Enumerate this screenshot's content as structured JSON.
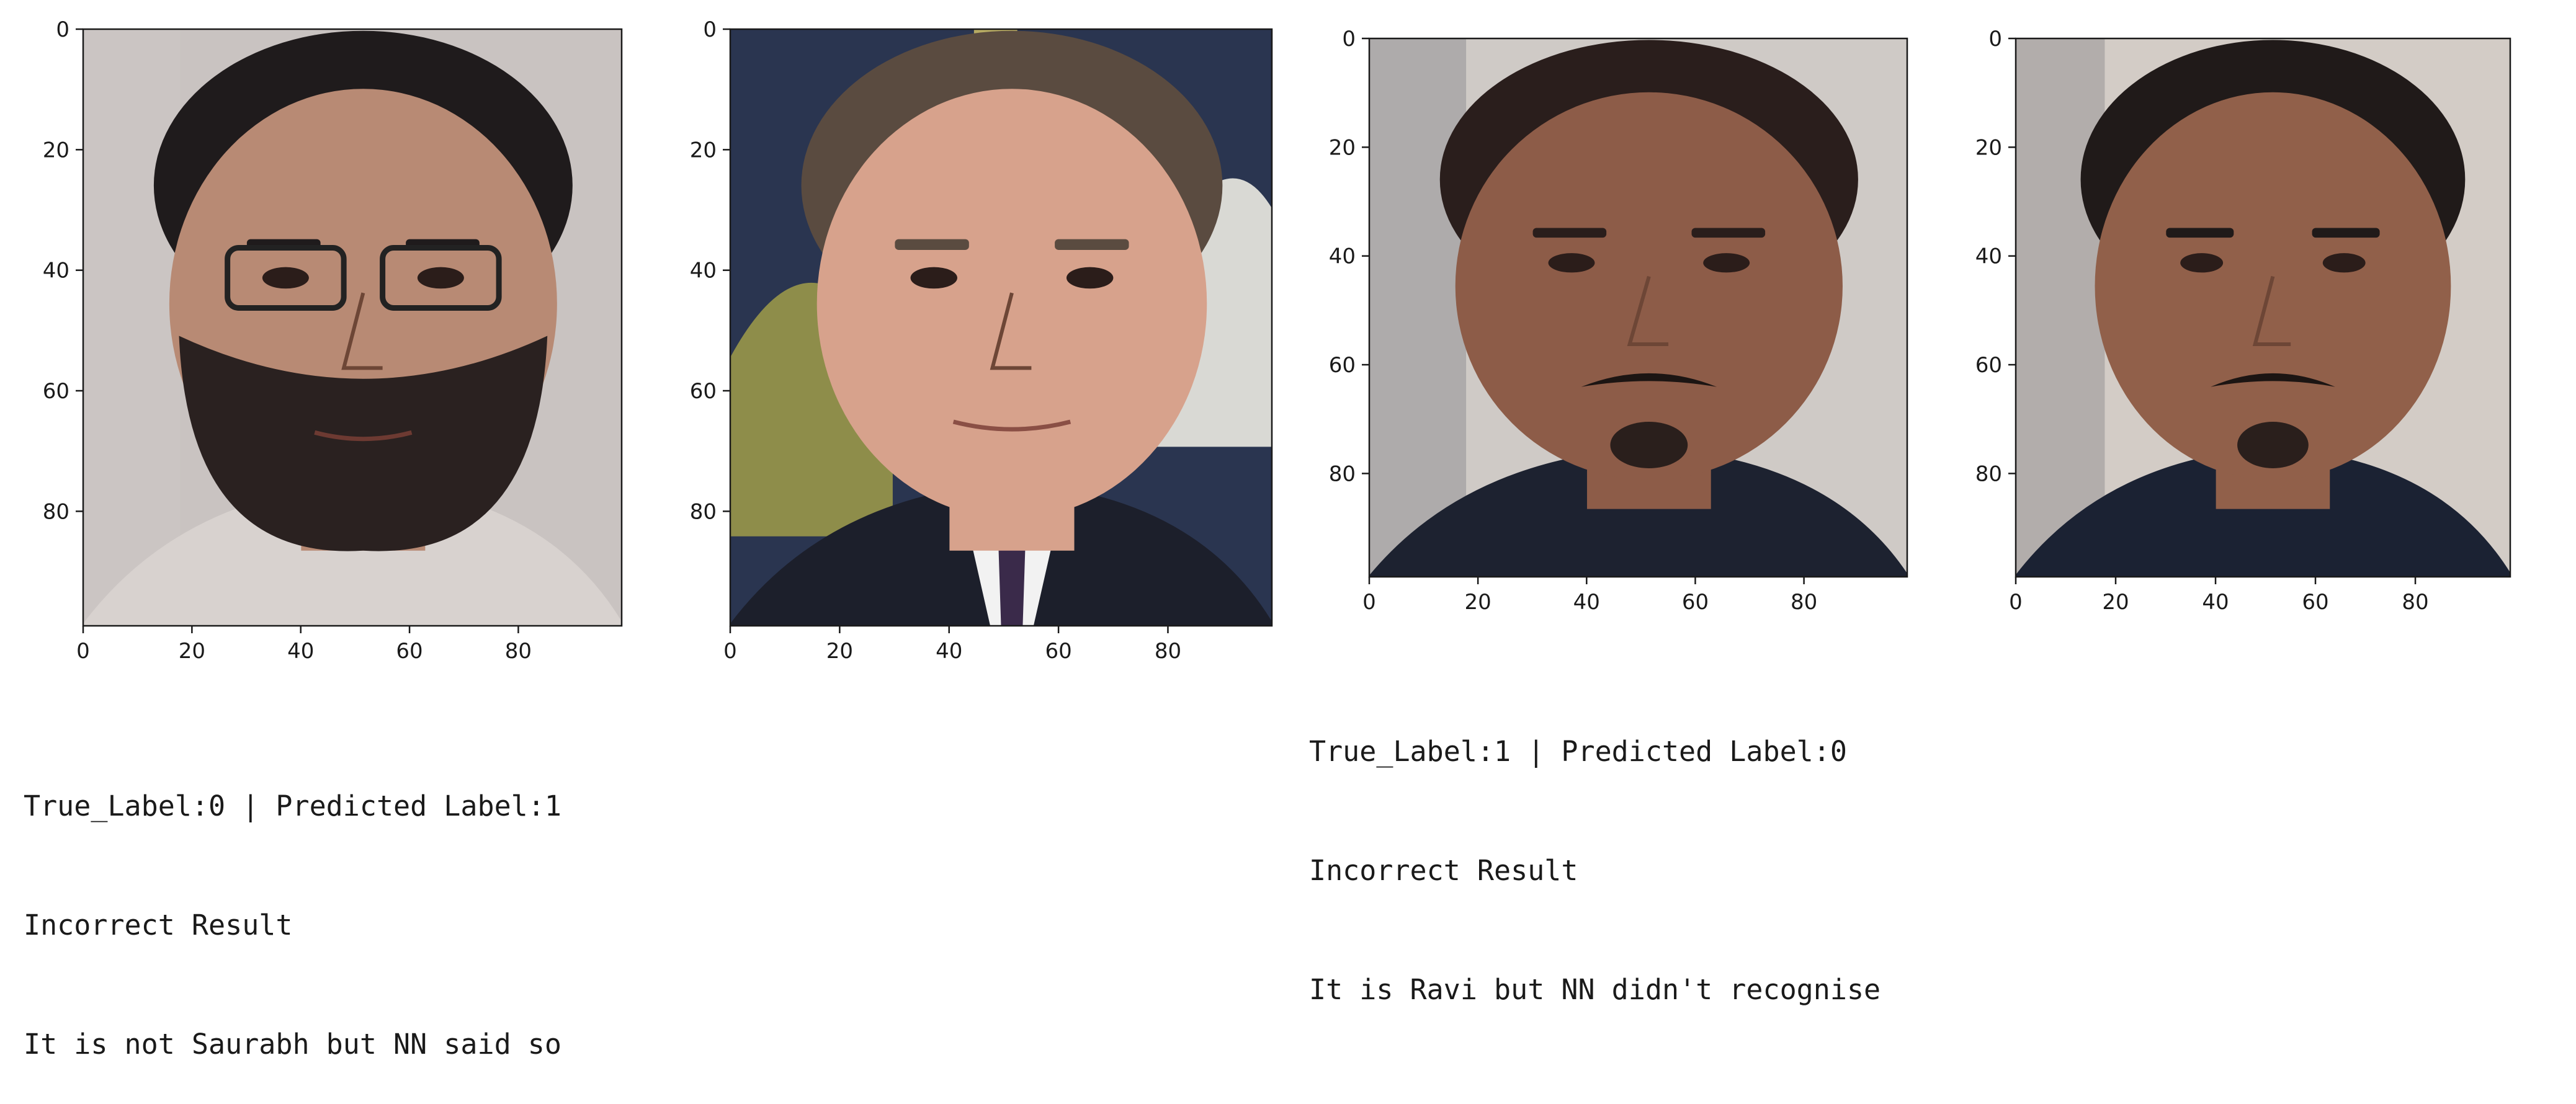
{
  "chart_data": [
    {
      "type": "image",
      "subject": "face-with-glasses-and-beard",
      "palette": {
        "background": "#c9c3c1",
        "skin": "#b88a74",
        "hair": "#1f1b1c",
        "clothing": "#d8d2cf"
      },
      "xticks": [
        0,
        20,
        40,
        60,
        80
      ],
      "yticks": [
        0,
        20,
        40,
        60,
        80
      ],
      "xlim": [
        0,
        99
      ],
      "ylim": [
        99,
        0
      ]
    },
    {
      "type": "image",
      "subject": "man-in-suit-portrait",
      "palette": {
        "background": "#2a3550",
        "skin": "#d7a28c",
        "hair": "#5a4b40",
        "clothing": "#1c1f2b"
      },
      "xticks": [
        0,
        20,
        40,
        60,
        80
      ],
      "yticks": [
        0,
        20,
        40,
        60,
        80
      ],
      "xlim": [
        0,
        99
      ],
      "ylim": [
        99,
        0
      ]
    },
    {
      "type": "image",
      "subject": "face-with-earbud",
      "palette": {
        "background": "#cfcac6",
        "skin": "#8d5c48",
        "hair": "#2a1e1c",
        "clothing": "#1d2230"
      },
      "xticks": [
        0,
        20,
        40,
        60,
        80
      ],
      "yticks": [
        0,
        20,
        40,
        60,
        80
      ],
      "xlim": [
        0,
        99
      ],
      "ylim": [
        99,
        0
      ]
    },
    {
      "type": "image",
      "subject": "face-frontal",
      "palette": {
        "background": "#d3ccc6",
        "skin": "#91604a",
        "hair": "#201a19",
        "clothing": "#1b2233"
      },
      "xticks": [
        0,
        20,
        40,
        60,
        80
      ],
      "yticks": [
        0,
        20,
        40,
        60,
        80
      ],
      "xlim": [
        0,
        99
      ],
      "ylim": [
        99,
        0
      ]
    }
  ],
  "results": [
    {
      "line1": "True_Label:0 | Predicted Label:1",
      "line2": "Incorrect Result",
      "line3": "It is not Saurabh but NN said so"
    },
    {
      "line1": "True_Label:1 | Predicted Label:0",
      "line2": "Incorrect Result",
      "line3": "It is Ravi but NN didn't recognise"
    }
  ]
}
